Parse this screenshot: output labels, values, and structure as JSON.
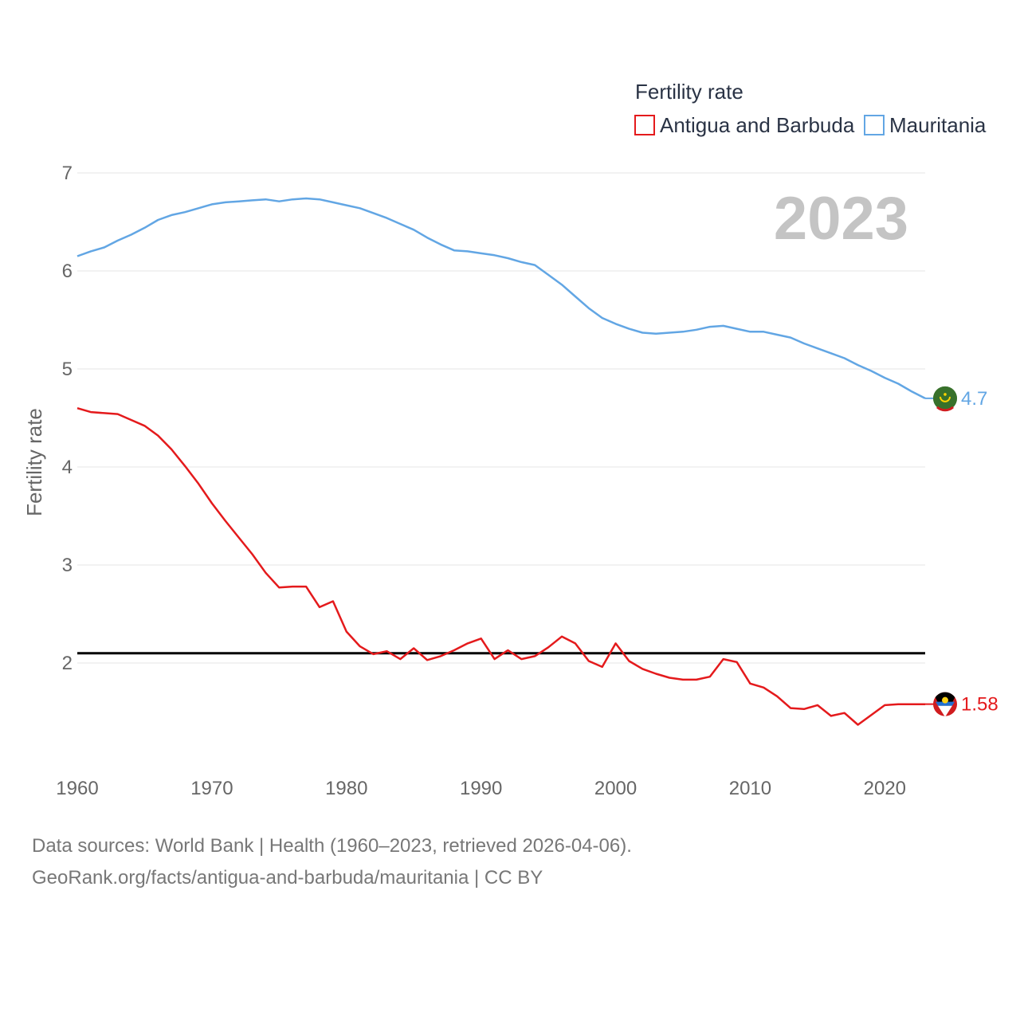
{
  "chart_data": {
    "type": "line",
    "title": "2023",
    "xlabel": "",
    "ylabel": "Fertility rate",
    "legend_title": "Fertility rate",
    "legend_position": "top-right",
    "xlim": [
      1960,
      2023
    ],
    "ylim": [
      1.0,
      7.0
    ],
    "x_ticks": [
      1960,
      1970,
      1980,
      1990,
      2000,
      2010,
      2020
    ],
    "x_tick_labels": [
      "1960",
      "1970",
      "1980",
      "1990",
      "2000",
      "2010",
      "2020"
    ],
    "y_ticks": [
      2,
      3,
      4,
      5,
      6,
      7
    ],
    "y_tick_labels": [
      "2",
      "3",
      "4",
      "5",
      "6",
      "7"
    ],
    "grid": true,
    "reference_line": {
      "y": 2.1,
      "color": "#000000"
    },
    "x": [
      1960,
      1961,
      1962,
      1963,
      1964,
      1965,
      1966,
      1967,
      1968,
      1969,
      1970,
      1971,
      1972,
      1973,
      1974,
      1975,
      1976,
      1977,
      1978,
      1979,
      1980,
      1981,
      1982,
      1983,
      1984,
      1985,
      1986,
      1987,
      1988,
      1989,
      1990,
      1991,
      1992,
      1993,
      1994,
      1995,
      1996,
      1997,
      1998,
      1999,
      2000,
      2001,
      2002,
      2003,
      2004,
      2005,
      2006,
      2007,
      2008,
      2009,
      2010,
      2011,
      2012,
      2013,
      2014,
      2015,
      2016,
      2017,
      2018,
      2019,
      2020,
      2021,
      2022,
      2023
    ],
    "series": [
      {
        "name": "Antigua and Barbuda",
        "color": "#e41a1c",
        "end_label": "1.58",
        "values": [
          4.6,
          4.56,
          4.55,
          4.54,
          4.48,
          4.42,
          4.32,
          4.18,
          4.01,
          3.83,
          3.63,
          3.45,
          3.28,
          3.11,
          2.92,
          2.77,
          2.78,
          2.78,
          2.57,
          2.63,
          2.32,
          2.17,
          2.09,
          2.12,
          2.04,
          2.15,
          2.03,
          2.07,
          2.13,
          2.2,
          2.25,
          2.04,
          2.13,
          2.04,
          2.07,
          2.16,
          2.27,
          2.2,
          2.02,
          1.96,
          2.2,
          2.02,
          1.94,
          1.89,
          1.85,
          1.83,
          1.83,
          1.86,
          2.04,
          2.01,
          1.79,
          1.75,
          1.66,
          1.54,
          1.53,
          1.57,
          1.46,
          1.49,
          1.37,
          1.47,
          1.57,
          1.58,
          1.58,
          1.58
        ]
      },
      {
        "name": "Mauritania",
        "color": "#62a6e4",
        "end_label": "4.7",
        "values": [
          6.15,
          6.2,
          6.24,
          6.31,
          6.37,
          6.44,
          6.52,
          6.57,
          6.6,
          6.64,
          6.68,
          6.7,
          6.71,
          6.72,
          6.73,
          6.71,
          6.73,
          6.74,
          6.73,
          6.7,
          6.67,
          6.64,
          6.59,
          6.54,
          6.48,
          6.42,
          6.34,
          6.27,
          6.21,
          6.2,
          6.18,
          6.16,
          6.13,
          6.09,
          6.06,
          5.96,
          5.86,
          5.74,
          5.62,
          5.52,
          5.46,
          5.41,
          5.37,
          5.36,
          5.37,
          5.38,
          5.4,
          5.43,
          5.44,
          5.41,
          5.38,
          5.38,
          5.35,
          5.32,
          5.26,
          5.21,
          5.16,
          5.11,
          5.04,
          4.98,
          4.91,
          4.85,
          4.77,
          4.7
        ]
      }
    ]
  },
  "icons": {
    "antigua_flag": "antigua-and-barbuda-flag-icon",
    "mauritania_flag": "mauritania-flag-icon"
  },
  "footer": {
    "line1": "Data sources: World Bank | Health (1960–2023, retrieved 2026-04-06).",
    "line2": "GeoRank.org/facts/antigua-and-barbuda/mauritania | CC BY"
  }
}
